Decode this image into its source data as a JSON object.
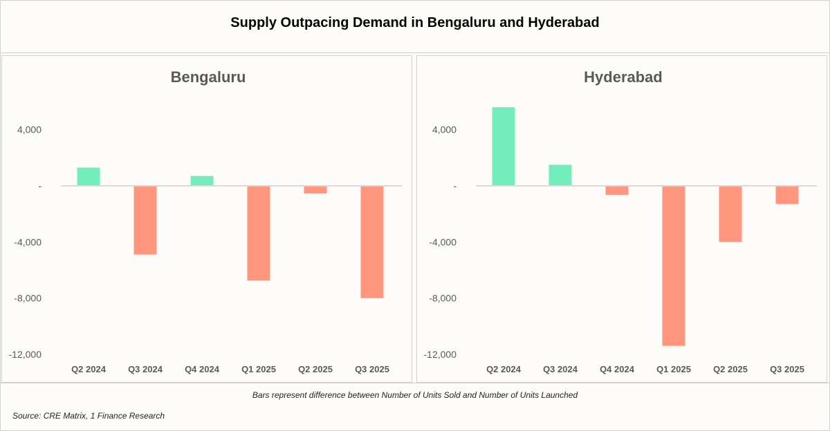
{
  "title": "Supply Outpacing Demand in Bengaluru and Hyderabad",
  "note": "Bars represent difference between Number of Units Sold and Number of Units Launched",
  "source": "Source: CRE Matrix, 1 Finance Research",
  "colors": {
    "positive": "#73edbb",
    "negative": "#ff967d",
    "axis": "#d9d9d9",
    "text": "#595959"
  },
  "chart_data": [
    {
      "type": "bar",
      "title": "Bengaluru",
      "categories": [
        "Q2 2024",
        "Q3 2024",
        "Q4 2024",
        "Q1 2025",
        "Q2 2025",
        "Q3 2025"
      ],
      "values": [
        1300,
        -4900,
        700,
        -6750,
        -550,
        -8000
      ],
      "ylim": [
        -12000,
        6000
      ],
      "yticks": [
        4000,
        0,
        -4000,
        -8000,
        -12000
      ],
      "ytick_labels": [
        "4,000",
        "-",
        "-4,000",
        "-8,000",
        "-12,000"
      ],
      "grid": false
    },
    {
      "type": "bar",
      "title": "Hyderabad",
      "categories": [
        "Q2 2024",
        "Q3 2024",
        "Q4 2024",
        "Q1 2025",
        "Q2 2025",
        "Q3 2025"
      ],
      "values": [
        5600,
        1500,
        -650,
        -11400,
        -4000,
        -1300
      ],
      "ylim": [
        -12000,
        6000
      ],
      "yticks": [
        4000,
        0,
        -4000,
        -8000,
        -12000
      ],
      "ytick_labels": [
        "4,000",
        "-",
        "-4,000",
        "-8,000",
        "-12,000"
      ],
      "grid": false
    }
  ]
}
